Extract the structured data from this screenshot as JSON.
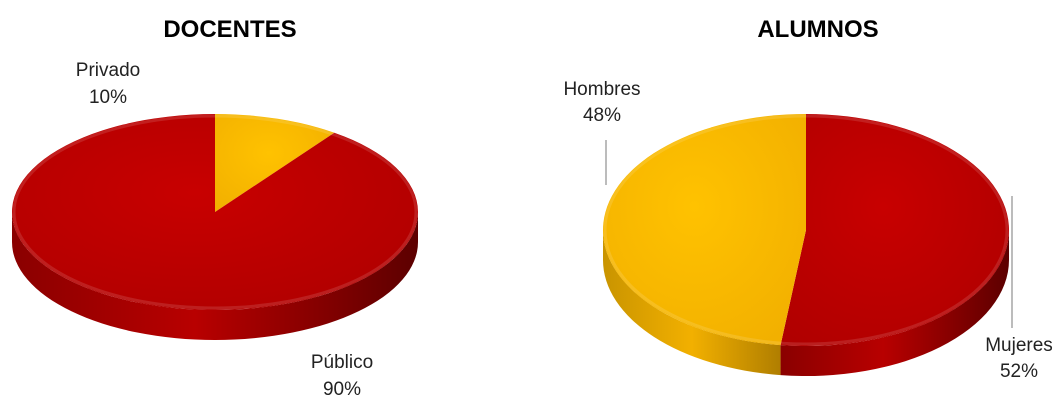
{
  "chart_data": [
    {
      "type": "pie",
      "title": "DOCENTES",
      "slices": [
        {
          "label": "Privado",
          "percent_label": "10%",
          "value": 10,
          "color": "#f7b500"
        },
        {
          "label": "Público",
          "percent_label": "90%",
          "value": 90,
          "color": "#c00000"
        }
      ],
      "start_angle_deg": 0,
      "style": "3d",
      "legend": "none"
    },
    {
      "type": "pie",
      "title": "ALUMNOS",
      "slices": [
        {
          "label": "Mujeres",
          "percent_label": "52%",
          "value": 52,
          "color": "#c00000"
        },
        {
          "label": "Hombres",
          "percent_label": "48%",
          "value": 48,
          "color": "#f7b500"
        }
      ],
      "start_angle_deg": 0,
      "style": "3d",
      "legend": "none"
    }
  ]
}
